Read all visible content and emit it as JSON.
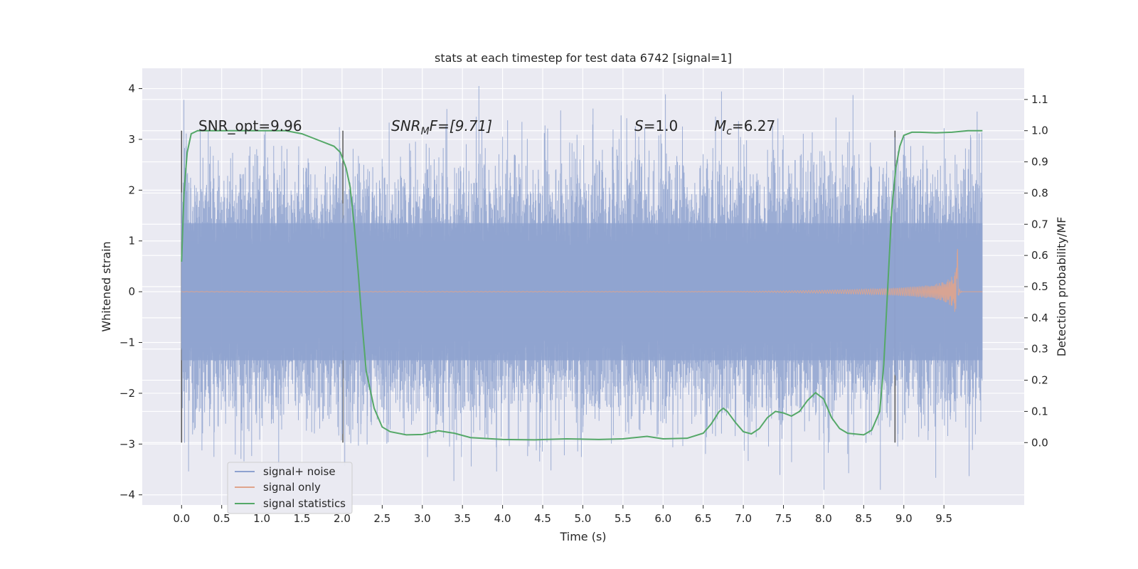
{
  "chart_data": {
    "type": "line",
    "title": "stats at each timestep for test data 6742 [signal=1]",
    "xlabel": "Time (s)",
    "ylabel": "Whitened strain",
    "y2label": "Detection probability/MF",
    "xlim": [
      -0.49,
      10.5
    ],
    "ylim": [
      -4.2,
      4.4
    ],
    "y2lim": [
      -0.2,
      1.2
    ],
    "xticks": [
      "0.0",
      "0.5",
      "1.0",
      "1.5",
      "2.0",
      "2.5",
      "3.0",
      "3.5",
      "4.0",
      "4.5",
      "5.0",
      "5.5",
      "6.0",
      "6.5",
      "7.0",
      "7.5",
      "8.0",
      "8.5",
      "9.0",
      "9.5"
    ],
    "yticks": [
      "4",
      "3",
      "2",
      "1",
      "0",
      "−1",
      "−2",
      "−3",
      "−4"
    ],
    "y2ticks": [
      "1.1",
      "1.0",
      "0.9",
      "0.8",
      "0.7",
      "0.6",
      "0.5",
      "0.4",
      "0.3",
      "0.2",
      "0.1",
      "0.0"
    ],
    "grid": true,
    "legend_position": "lower-left",
    "colors": {
      "background": "#eaeaf2",
      "grid": "#ffffff",
      "noise": "#8ea2cf",
      "signal": "#e0a48c",
      "stats": "#55a868",
      "vline": "#555555"
    },
    "annotations": {
      "snr_opt": "SNR_opt=9.96",
      "snr_mf_base": "SNR",
      "snr_mf_sub": "M",
      "snr_mf_rest": "F=[9.71]",
      "s_var": "S",
      "s_rest": "=1.0",
      "mc_var": "M",
      "mc_sub": "c",
      "mc_rest": "=6.27"
    },
    "vlines": [
      0.0,
      2.01,
      8.89
    ],
    "series": [
      {
        "name": "signal+ noise",
        "type": "noise",
        "x_range": [
          0.0,
          9.98
        ],
        "envelope": 1.35,
        "peak_max": 4.05
      },
      {
        "name": "signal only",
        "type": "chirp",
        "x_range": [
          0.0,
          9.98
        ],
        "merger_time": 9.67,
        "peak_amplitude": 1.1
      },
      {
        "name": "signal statistics",
        "type": "line",
        "axis": "right",
        "x": [
          0.0,
          0.03,
          0.07,
          0.12,
          0.2,
          0.35,
          0.6,
          1.0,
          1.3,
          1.5,
          1.7,
          1.9,
          1.98,
          2.05,
          2.1,
          2.15,
          2.2,
          2.25,
          2.3,
          2.4,
          2.5,
          2.6,
          2.8,
          3.0,
          3.2,
          3.4,
          3.6,
          4.0,
          4.4,
          4.8,
          5.2,
          5.5,
          5.8,
          6.0,
          6.3,
          6.5,
          6.6,
          6.7,
          6.75,
          6.8,
          6.9,
          7.0,
          7.1,
          7.2,
          7.3,
          7.4,
          7.5,
          7.6,
          7.7,
          7.8,
          7.9,
          8.0,
          8.1,
          8.2,
          8.3,
          8.5,
          8.6,
          8.7,
          8.75,
          8.8,
          8.85,
          8.9,
          8.95,
          9.0,
          9.1,
          9.2,
          9.4,
          9.6,
          9.8,
          9.98
        ],
        "y": [
          0.58,
          0.8,
          0.93,
          0.99,
          1.0,
          1.0,
          1.0,
          1.0,
          1.0,
          0.99,
          0.97,
          0.95,
          0.93,
          0.88,
          0.82,
          0.7,
          0.55,
          0.38,
          0.23,
          0.11,
          0.05,
          0.035,
          0.025,
          0.026,
          0.038,
          0.03,
          0.016,
          0.01,
          0.009,
          0.012,
          0.01,
          0.012,
          0.02,
          0.012,
          0.014,
          0.03,
          0.06,
          0.1,
          0.11,
          0.1,
          0.065,
          0.035,
          0.028,
          0.045,
          0.08,
          0.1,
          0.095,
          0.085,
          0.1,
          0.135,
          0.16,
          0.14,
          0.08,
          0.045,
          0.03,
          0.025,
          0.04,
          0.1,
          0.25,
          0.5,
          0.75,
          0.88,
          0.95,
          0.985,
          0.995,
          0.995,
          0.993,
          0.995,
          1.0,
          1.0
        ]
      }
    ]
  }
}
